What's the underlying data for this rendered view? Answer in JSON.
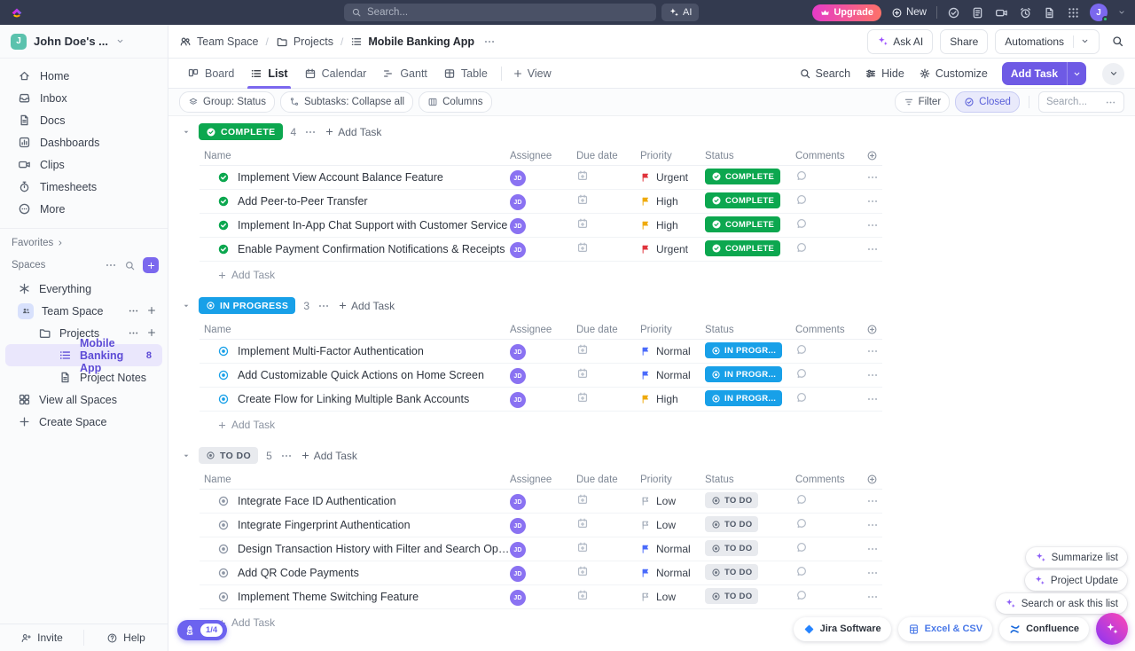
{
  "topbar": {
    "search_placeholder": "Search...",
    "ai_label": "AI",
    "upgrade_label": "Upgrade",
    "new_label": "New",
    "avatar_initial": "J",
    "icons": [
      {
        "name": "check-circle"
      },
      {
        "name": "notepad"
      },
      {
        "name": "video"
      },
      {
        "name": "alarm"
      },
      {
        "name": "doc"
      },
      {
        "name": "apps-grid"
      }
    ]
  },
  "sidebar": {
    "workspace": {
      "initial": "J",
      "name": "John Doe's ..."
    },
    "nav": [
      {
        "icon": "home",
        "label": "Home"
      },
      {
        "icon": "inbox",
        "label": "Inbox"
      },
      {
        "icon": "doc",
        "label": "Docs"
      },
      {
        "icon": "dashboard",
        "label": "Dashboards"
      },
      {
        "icon": "video",
        "label": "Clips"
      },
      {
        "icon": "timer",
        "label": "Timesheets"
      },
      {
        "icon": "more-circle",
        "label": "More"
      }
    ],
    "favorites_label": "Favorites",
    "spaces_label": "Spaces",
    "tree": [
      {
        "icon": "everything",
        "label": "Everything",
        "indent": 0
      },
      {
        "icon": "team",
        "label": "Team Space",
        "indent": 0,
        "actions": true
      },
      {
        "icon": "folder",
        "label": "Projects",
        "indent": 1,
        "actions": true
      },
      {
        "icon": "list",
        "label": "Mobile Banking App",
        "indent": 2,
        "selected": true,
        "count": "8"
      },
      {
        "icon": "doc",
        "label": "Project Notes",
        "indent": 2
      },
      {
        "icon": "grid",
        "label": "View all Spaces",
        "indent": 0
      },
      {
        "icon": "plus",
        "label": "Create Space",
        "indent": 0
      }
    ],
    "invite_label": "Invite",
    "help_label": "Help"
  },
  "breadcrumb": {
    "separator": "/",
    "items": [
      {
        "icon": "people",
        "label": "Team Space"
      },
      {
        "icon": "folder",
        "label": "Projects"
      },
      {
        "icon": "list",
        "label": "Mobile Banking App"
      }
    ]
  },
  "header_actions": {
    "ask_ai": "Ask AI",
    "share": "Share",
    "automations": "Automations"
  },
  "tabs": {
    "items": [
      {
        "icon": "board",
        "label": "Board",
        "active": false
      },
      {
        "icon": "list",
        "label": "List",
        "active": true
      },
      {
        "icon": "calendar",
        "label": "Calendar",
        "active": false
      },
      {
        "icon": "gantt",
        "label": "Gantt",
        "active": false
      },
      {
        "icon": "table",
        "label": "Table",
        "active": false
      }
    ],
    "add_view_label": "View",
    "search_label": "Search",
    "hide_label": "Hide",
    "customize_label": "Customize",
    "add_task_label": "Add Task"
  },
  "filterbar": {
    "pills": [
      {
        "icon": "layers",
        "label": "Group: Status"
      },
      {
        "icon": "subtasks",
        "label": "Subtasks: Collapse all"
      },
      {
        "icon": "columns",
        "label": "Columns"
      }
    ],
    "filter_label": "Filter",
    "closed_label": "Closed",
    "search_placeholder": "Search..."
  },
  "table": {
    "columns": [
      "Name",
      "Assignee",
      "Due date",
      "Priority",
      "Status",
      "Comments"
    ]
  },
  "strings": {
    "add_task": "Add Task"
  },
  "colors": {
    "brand": "#7b68ee",
    "complete": "#0ca74f",
    "in_progress": "#18a0e8",
    "todo_icon": "#8d96a5",
    "urgent": "#e0343c",
    "high": "#efaa0c",
    "normal": "#4a6bfb",
    "low": "#9aa4b2"
  },
  "groups": [
    {
      "id": "complete",
      "label": "COMPLETE",
      "row_label": "COMPLETE",
      "count": "4",
      "tasks": [
        {
          "name": "Implement View Account Balance Feature",
          "assignee": "JD",
          "priority": "Urgent"
        },
        {
          "name": "Add Peer-to-Peer Transfer",
          "assignee": "JD",
          "priority": "High"
        },
        {
          "name": "Implement In-App Chat Support with Customer Service",
          "assignee": "JD",
          "priority": "High"
        },
        {
          "name": "Enable Payment Confirmation Notifications & Receipts",
          "assignee": "JD",
          "priority": "Urgent"
        }
      ]
    },
    {
      "id": "inprogress",
      "label": "IN PROGRESS",
      "row_label": "IN PROGR...",
      "count": "3",
      "tasks": [
        {
          "name": "Implement Multi-Factor Authentication",
          "assignee": "JD",
          "priority": "Normal"
        },
        {
          "name": "Add Customizable Quick Actions on Home Screen",
          "assignee": "JD",
          "priority": "Normal"
        },
        {
          "name": "Create Flow for Linking Multiple Bank Accounts",
          "assignee": "JD",
          "priority": "High"
        }
      ]
    },
    {
      "id": "todo",
      "label": "TO DO",
      "row_label": "TO DO",
      "count": "5",
      "tasks": [
        {
          "name": "Integrate Face ID Authentication",
          "assignee": "JD",
          "priority": "Low"
        },
        {
          "name": "Integrate Fingerprint Authentication",
          "assignee": "JD",
          "priority": "Low"
        },
        {
          "name": "Design Transaction History with Filter and Search Options",
          "assignee": "JD",
          "priority": "Normal"
        },
        {
          "name": "Add QR Code Payments",
          "assignee": "JD",
          "priority": "Normal"
        },
        {
          "name": "Implement Theme Switching Feature",
          "assignee": "JD",
          "priority": "Low"
        }
      ]
    }
  ],
  "floating": {
    "ai_actions": [
      "Summarize list",
      "Project Update",
      "Search or ask this list"
    ],
    "integrations": [
      {
        "icon": "jira",
        "label": "Jira Software"
      },
      {
        "icon": "exceldoc",
        "label": "Excel & CSV"
      },
      {
        "icon": "confluence",
        "label": "Confluence"
      }
    ],
    "onboarding_progress": "1/4"
  }
}
